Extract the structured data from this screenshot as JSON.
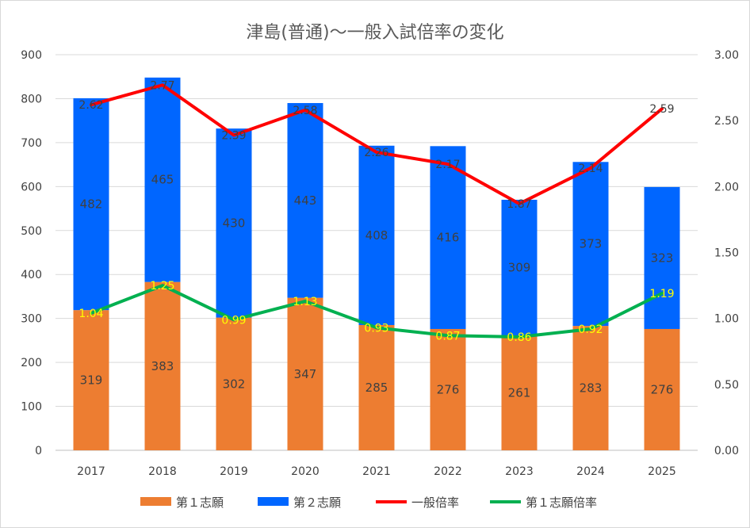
{
  "chart_data": {
    "type": "bar",
    "stacked": true,
    "title": "津島(普通)～一般入試倍率の変化",
    "categories": [
      "2017",
      "2018",
      "2019",
      "2020",
      "2021",
      "2022",
      "2023",
      "2024",
      "2025"
    ],
    "series": [
      {
        "name": "第１志願",
        "type": "bar",
        "axis": "left",
        "color": "#ed7d31",
        "values": [
          319,
          383,
          302,
          347,
          285,
          276,
          261,
          283,
          276
        ]
      },
      {
        "name": "第２志願",
        "type": "bar",
        "axis": "left",
        "color": "#0066ff",
        "values": [
          482,
          465,
          430,
          443,
          408,
          416,
          309,
          373,
          323
        ]
      },
      {
        "name": "一般倍率",
        "type": "line",
        "axis": "right",
        "color": "#ff0000",
        "values": [
          2.62,
          2.77,
          2.39,
          2.58,
          2.26,
          2.17,
          1.87,
          2.14,
          2.59
        ]
      },
      {
        "name": "第１志願倍率",
        "type": "line",
        "axis": "right",
        "color": "#00b050",
        "values": [
          1.04,
          1.25,
          0.99,
          1.13,
          0.93,
          0.87,
          0.86,
          0.92,
          1.19
        ]
      }
    ],
    "y_left": {
      "min": 0,
      "max": 900,
      "step": 100,
      "ticks": [
        "0",
        "100",
        "200",
        "300",
        "400",
        "500",
        "600",
        "700",
        "800",
        "900"
      ]
    },
    "y_right": {
      "min": 0,
      "max": 3,
      "step": 0.5,
      "ticks": [
        "0.00",
        "0.50",
        "1.00",
        "1.50",
        "2.00",
        "2.50",
        "3.00"
      ]
    },
    "grid": true,
    "legend": "bottom"
  }
}
